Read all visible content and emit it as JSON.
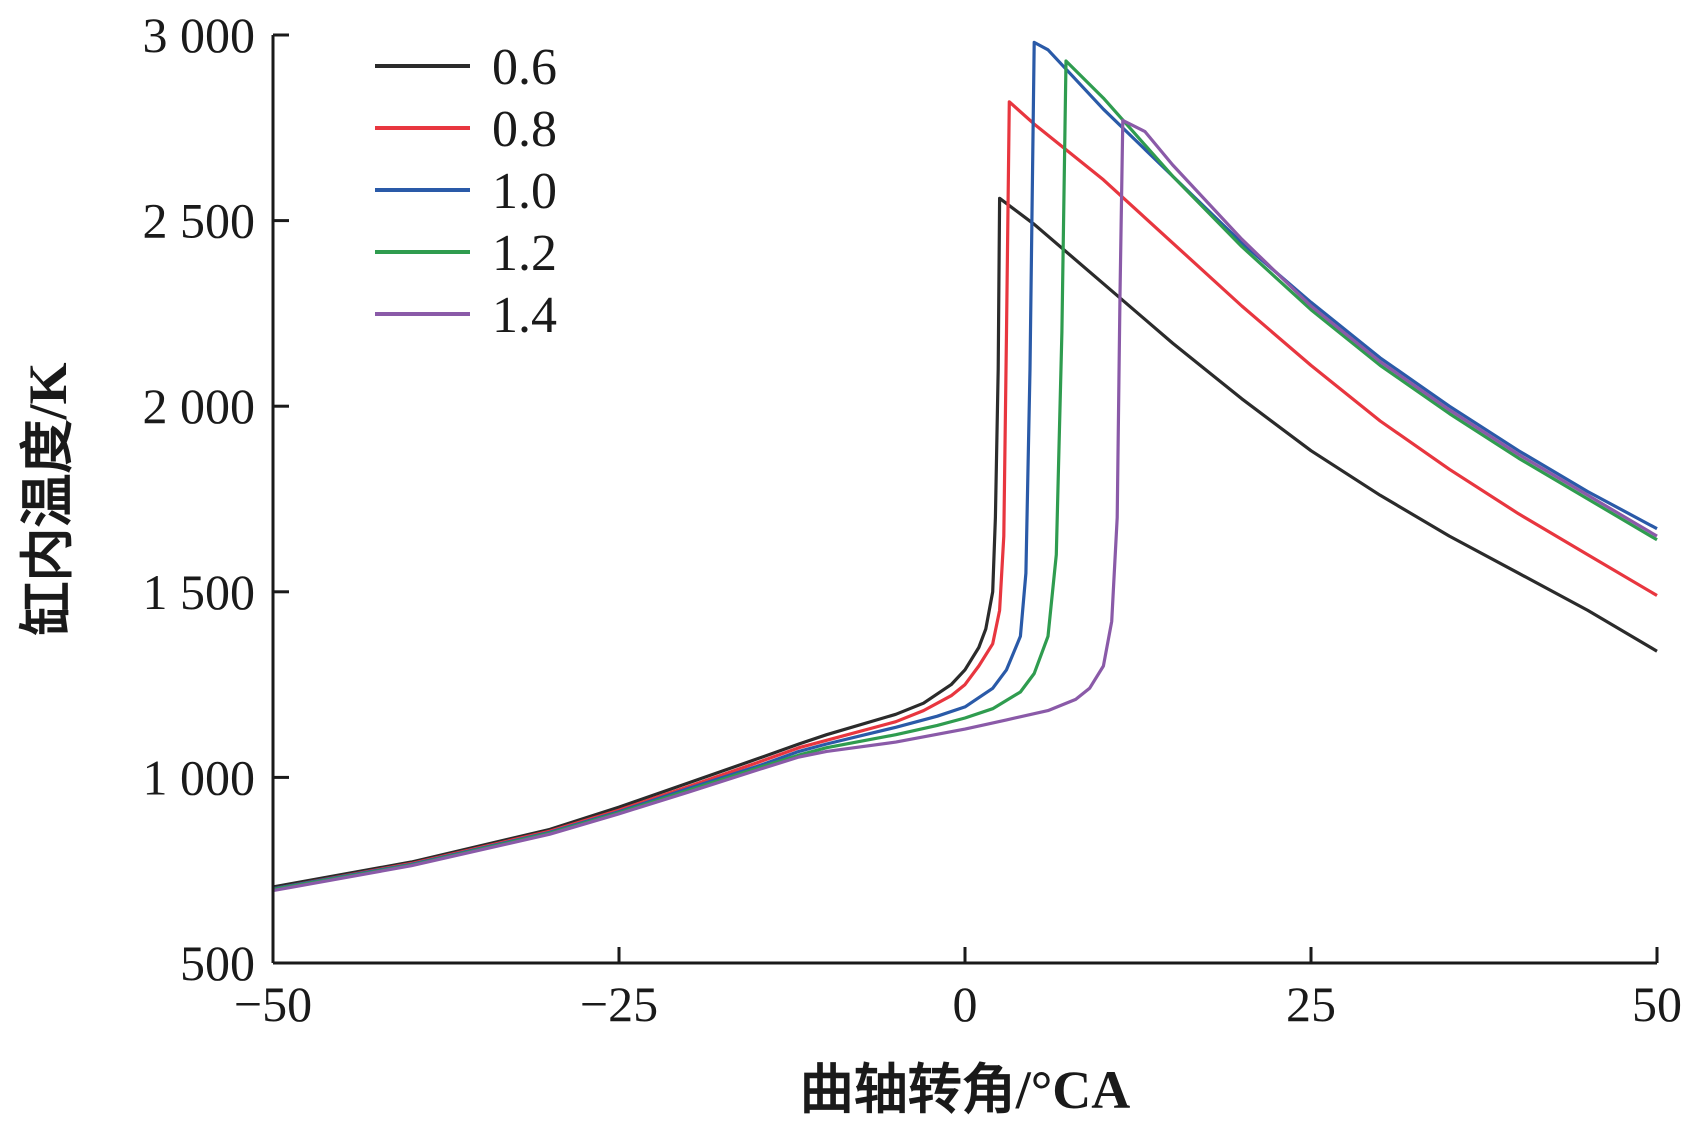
{
  "chart_data": {
    "type": "line",
    "xlabel": "曲轴转角/°CA",
    "ylabel": "缸内温度/K",
    "xlim": [
      -50,
      50
    ],
    "ylim": [
      500,
      3000
    ],
    "xticks": [
      -50,
      -25,
      0,
      25,
      50
    ],
    "yticks": [
      500,
      1000,
      1500,
      2000,
      2500,
      3000
    ],
    "xtick_labels": [
      "−50",
      "−25",
      "0",
      "25",
      "50"
    ],
    "ytick_labels": [
      "500",
      "1 000",
      "1 500",
      "2 000",
      "2 500",
      "3 000"
    ],
    "grid": false,
    "legend_position": "top-left",
    "series": [
      {
        "name": "0.6",
        "color": "#2b2b2b",
        "points": [
          [
            -50,
            705
          ],
          [
            -40,
            772
          ],
          [
            -30,
            860
          ],
          [
            -25,
            920
          ],
          [
            -20,
            985
          ],
          [
            -15,
            1050
          ],
          [
            -12,
            1090
          ],
          [
            -10,
            1115
          ],
          [
            -5,
            1170
          ],
          [
            -3,
            1200
          ],
          [
            -1,
            1250
          ],
          [
            0,
            1290
          ],
          [
            1,
            1350
          ],
          [
            1.5,
            1400
          ],
          [
            2,
            1500
          ],
          [
            2.2,
            1700
          ],
          [
            2.4,
            2100
          ],
          [
            2.5,
            2560
          ],
          [
            5,
            2490
          ],
          [
            10,
            2330
          ],
          [
            15,
            2170
          ],
          [
            20,
            2020
          ],
          [
            25,
            1880
          ],
          [
            30,
            1760
          ],
          [
            35,
            1650
          ],
          [
            40,
            1550
          ],
          [
            45,
            1450
          ],
          [
            50,
            1340
          ]
        ]
      },
      {
        "name": "0.8",
        "color": "#e8363f",
        "points": [
          [
            -50,
            700
          ],
          [
            -40,
            768
          ],
          [
            -30,
            855
          ],
          [
            -25,
            912
          ],
          [
            -20,
            975
          ],
          [
            -15,
            1040
          ],
          [
            -12,
            1080
          ],
          [
            -10,
            1100
          ],
          [
            -5,
            1150
          ],
          [
            -3,
            1180
          ],
          [
            -1,
            1220
          ],
          [
            0,
            1250
          ],
          [
            1,
            1300
          ],
          [
            2,
            1360
          ],
          [
            2.5,
            1450
          ],
          [
            2.8,
            1650
          ],
          [
            3.0,
            2200
          ],
          [
            3.2,
            2820
          ],
          [
            5,
            2760
          ],
          [
            10,
            2610
          ],
          [
            15,
            2440
          ],
          [
            20,
            2270
          ],
          [
            25,
            2110
          ],
          [
            30,
            1960
          ],
          [
            35,
            1830
          ],
          [
            40,
            1710
          ],
          [
            45,
            1600
          ],
          [
            50,
            1490
          ]
        ]
      },
      {
        "name": "1.0",
        "color": "#2a5aa8",
        "points": [
          [
            -50,
            700
          ],
          [
            -40,
            766
          ],
          [
            -30,
            852
          ],
          [
            -25,
            908
          ],
          [
            -20,
            970
          ],
          [
            -15,
            1030
          ],
          [
            -12,
            1070
          ],
          [
            -10,
            1090
          ],
          [
            -5,
            1135
          ],
          [
            -2,
            1165
          ],
          [
            0,
            1190
          ],
          [
            2,
            1240
          ],
          [
            3,
            1290
          ],
          [
            4,
            1380
          ],
          [
            4.4,
            1550
          ],
          [
            4.7,
            2100
          ],
          [
            5,
            2980
          ],
          [
            6,
            2960
          ],
          [
            10,
            2800
          ],
          [
            15,
            2620
          ],
          [
            20,
            2440
          ],
          [
            25,
            2280
          ],
          [
            30,
            2130
          ],
          [
            35,
            2000
          ],
          [
            40,
            1880
          ],
          [
            45,
            1770
          ],
          [
            50,
            1670
          ]
        ]
      },
      {
        "name": "1.2",
        "color": "#2f9c4f",
        "points": [
          [
            -50,
            698
          ],
          [
            -40,
            764
          ],
          [
            -30,
            850
          ],
          [
            -25,
            905
          ],
          [
            -20,
            965
          ],
          [
            -15,
            1025
          ],
          [
            -12,
            1060
          ],
          [
            -10,
            1080
          ],
          [
            -5,
            1115
          ],
          [
            -2,
            1140
          ],
          [
            0,
            1160
          ],
          [
            2,
            1185
          ],
          [
            4,
            1230
          ],
          [
            5,
            1280
          ],
          [
            6,
            1380
          ],
          [
            6.6,
            1600
          ],
          [
            7,
            2200
          ],
          [
            7.3,
            2930
          ],
          [
            10,
            2830
          ],
          [
            15,
            2620
          ],
          [
            20,
            2430
          ],
          [
            25,
            2260
          ],
          [
            30,
            2110
          ],
          [
            35,
            1980
          ],
          [
            40,
            1860
          ],
          [
            45,
            1750
          ],
          [
            50,
            1640
          ]
        ]
      },
      {
        "name": "1.4",
        "color": "#8a5aa8",
        "points": [
          [
            -50,
            695
          ],
          [
            -40,
            762
          ],
          [
            -30,
            847
          ],
          [
            -25,
            902
          ],
          [
            -20,
            960
          ],
          [
            -15,
            1020
          ],
          [
            -12,
            1055
          ],
          [
            -10,
            1070
          ],
          [
            -5,
            1095
          ],
          [
            0,
            1130
          ],
          [
            3,
            1155
          ],
          [
            6,
            1180
          ],
          [
            8,
            1210
          ],
          [
            9,
            1240
          ],
          [
            10,
            1300
          ],
          [
            10.6,
            1420
          ],
          [
            11,
            1700
          ],
          [
            11.2,
            2300
          ],
          [
            11.4,
            2770
          ],
          [
            13,
            2740
          ],
          [
            15,
            2650
          ],
          [
            20,
            2450
          ],
          [
            25,
            2270
          ],
          [
            30,
            2120
          ],
          [
            35,
            1990
          ],
          [
            40,
            1870
          ],
          [
            45,
            1760
          ],
          [
            50,
            1650
          ]
        ]
      }
    ]
  }
}
